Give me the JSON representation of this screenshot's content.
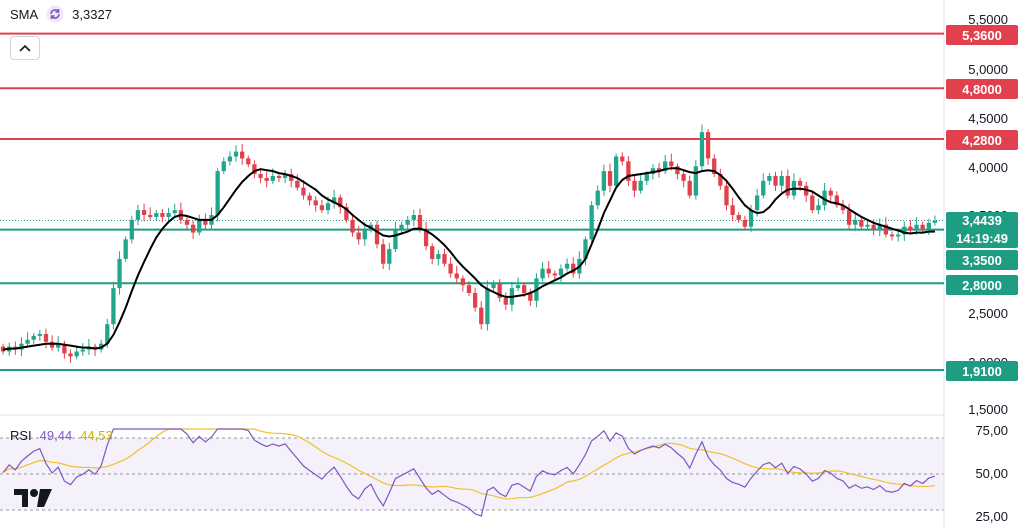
{
  "legend": {
    "indicator": "SMA",
    "value": "3,3327"
  },
  "rsi_legend": {
    "label": "RSI",
    "rsi_value": "49,44",
    "ma_value": "44,53"
  },
  "price_axis": [
    "5,5000",
    "5,0000",
    "4,5000",
    "4,0000",
    "3,5000",
    "2,5000",
    "2,0000",
    "1,5000"
  ],
  "rsi_axis": [
    "75,00",
    "50,00",
    "25,00"
  ],
  "levels": [
    {
      "label": "5,3600",
      "value": 5.36,
      "color": "#e0414c"
    },
    {
      "label": "4,8000",
      "value": 4.8,
      "color": "#e0414c"
    },
    {
      "label": "4,2800",
      "value": 4.28,
      "color": "#e0414c"
    },
    {
      "label": "3,3500",
      "value": 3.35,
      "color": "#1e9c84"
    },
    {
      "label": "2,8000",
      "value": 2.8,
      "color": "#1e9c84"
    },
    {
      "label": "1,9100",
      "value": 1.91,
      "color": "#1e9c84"
    }
  ],
  "current": {
    "price": "3,4439",
    "countdown": "14:19:49",
    "value": 3.4439
  },
  "colors": {
    "up": "#22a68b",
    "down": "#e0414c",
    "sma": "#000000",
    "rsi": "#7e57c2",
    "rsi_ma": "#f2c12e"
  },
  "icons": {
    "sma": "refresh-icon",
    "collapse": "chevron-up-icon",
    "logo": "tradingview-logo"
  },
  "chart_data": {
    "type": "candlestick",
    "price_ylim": [
      1.5,
      5.5
    ],
    "rsi_ylim": [
      25,
      75
    ],
    "rsi_band": [
      30,
      70
    ],
    "close": [
      2.1,
      2.15,
      2.12,
      2.18,
      2.22,
      2.26,
      2.28,
      2.2,
      2.14,
      2.18,
      2.08,
      2.05,
      2.1,
      2.12,
      2.15,
      2.12,
      2.18,
      2.38,
      2.75,
      3.05,
      3.25,
      3.45,
      3.55,
      3.5,
      3.48,
      3.52,
      3.48,
      3.52,
      3.55,
      3.45,
      3.4,
      3.32,
      3.45,
      3.4,
      3.5,
      3.95,
      4.05,
      4.1,
      4.15,
      4.08,
      4.02,
      3.92,
      3.88,
      3.85,
      3.9,
      3.88,
      3.92,
      3.85,
      3.78,
      3.7,
      3.65,
      3.6,
      3.55,
      3.62,
      3.68,
      3.58,
      3.45,
      3.32,
      3.25,
      3.35,
      3.4,
      3.2,
      3.0,
      3.15,
      3.35,
      3.4,
      3.45,
      3.5,
      3.35,
      3.18,
      3.05,
      3.1,
      3.0,
      2.9,
      2.85,
      2.78,
      2.7,
      2.55,
      2.38,
      2.75,
      2.8,
      2.65,
      2.58,
      2.75,
      2.78,
      2.7,
      2.62,
      2.85,
      2.95,
      2.9,
      2.88,
      2.95,
      3.0,
      2.9,
      3.05,
      3.25,
      3.6,
      3.75,
      3.95,
      3.8,
      4.1,
      4.05,
      3.85,
      3.75,
      3.85,
      3.92,
      3.98,
      3.95,
      4.05,
      4.0,
      3.92,
      3.85,
      3.7,
      4.0,
      4.35,
      4.08,
      3.92,
      3.8,
      3.6,
      3.5,
      3.45,
      3.38,
      3.55,
      3.7,
      3.85,
      3.9,
      3.8,
      3.9,
      3.7,
      3.85,
      3.8,
      3.7,
      3.55,
      3.6,
      3.75,
      3.7,
      3.6,
      3.55,
      3.4,
      3.45,
      3.38,
      3.4,
      3.35,
      3.4,
      3.3,
      3.28,
      3.3,
      3.38,
      3.34,
      3.4,
      3.36,
      3.42,
      3.44
    ],
    "open": [
      2.15,
      2.1,
      2.15,
      2.12,
      2.18,
      2.22,
      2.26,
      2.28,
      2.2,
      2.14,
      2.18,
      2.08,
      2.05,
      2.1,
      2.12,
      2.15,
      2.12,
      2.18,
      2.38,
      2.75,
      3.05,
      3.25,
      3.45,
      3.55,
      3.5,
      3.48,
      3.52,
      3.48,
      3.52,
      3.55,
      3.45,
      3.4,
      3.32,
      3.45,
      3.4,
      3.5,
      3.95,
      4.05,
      4.1,
      4.15,
      4.08,
      4.02,
      3.92,
      3.88,
      3.85,
      3.9,
      3.88,
      3.92,
      3.85,
      3.78,
      3.7,
      3.65,
      3.6,
      3.55,
      3.62,
      3.68,
      3.58,
      3.45,
      3.32,
      3.25,
      3.35,
      3.4,
      3.2,
      3.0,
      3.15,
      3.35,
      3.4,
      3.45,
      3.5,
      3.35,
      3.18,
      3.05,
      3.1,
      3.0,
      2.9,
      2.85,
      2.78,
      2.7,
      2.55,
      2.38,
      2.75,
      2.8,
      2.65,
      2.58,
      2.75,
      2.78,
      2.7,
      2.62,
      2.85,
      2.95,
      2.9,
      2.88,
      2.95,
      3.0,
      2.9,
      3.05,
      3.25,
      3.6,
      3.75,
      3.95,
      3.8,
      4.1,
      4.05,
      3.85,
      3.75,
      3.85,
      3.92,
      3.98,
      3.95,
      4.05,
      4.0,
      3.92,
      3.85,
      3.7,
      4.0,
      4.35,
      4.08,
      3.92,
      3.8,
      3.6,
      3.5,
      3.45,
      3.38,
      3.55,
      3.7,
      3.85,
      3.9,
      3.8,
      3.9,
      3.7,
      3.85,
      3.8,
      3.7,
      3.55,
      3.6,
      3.75,
      3.7,
      3.6,
      3.55,
      3.4,
      3.45,
      3.38,
      3.4,
      3.35,
      3.4,
      3.3,
      3.28,
      3.3,
      3.38,
      3.34,
      3.4,
      3.36,
      3.42
    ],
    "sma": [
      2.12,
      2.13,
      2.13,
      2.14,
      2.15,
      2.16,
      2.17,
      2.18,
      2.18,
      2.18,
      2.17,
      2.16,
      2.15,
      2.14,
      2.14,
      2.13,
      2.14,
      2.18,
      2.27,
      2.4,
      2.55,
      2.72,
      2.88,
      3.02,
      3.15,
      3.27,
      3.36,
      3.43,
      3.48,
      3.5,
      3.49,
      3.47,
      3.45,
      3.45,
      3.45,
      3.5,
      3.58,
      3.67,
      3.76,
      3.84,
      3.9,
      3.95,
      3.97,
      3.96,
      3.95,
      3.93,
      3.92,
      3.9,
      3.88,
      3.84,
      3.8,
      3.76,
      3.7,
      3.66,
      3.63,
      3.6,
      3.56,
      3.5,
      3.45,
      3.4,
      3.37,
      3.33,
      3.29,
      3.28,
      3.29,
      3.31,
      3.33,
      3.36,
      3.36,
      3.34,
      3.3,
      3.25,
      3.19,
      3.12,
      3.04,
      2.97,
      2.91,
      2.85,
      2.78,
      2.74,
      2.71,
      2.68,
      2.66,
      2.66,
      2.67,
      2.68,
      2.7,
      2.73,
      2.77,
      2.8,
      2.83,
      2.86,
      2.9,
      2.93,
      2.97,
      3.05,
      3.2,
      3.35,
      3.52,
      3.65,
      3.78,
      3.86,
      3.9,
      3.91,
      3.92,
      3.93,
      3.94,
      3.95,
      3.97,
      3.98,
      3.98,
      3.96,
      3.94,
      3.93,
      3.95,
      3.96,
      3.95,
      3.91,
      3.85,
      3.77,
      3.68,
      3.6,
      3.55,
      3.52,
      3.53,
      3.58,
      3.66,
      3.72,
      3.76,
      3.77,
      3.77,
      3.76,
      3.74,
      3.7,
      3.66,
      3.63,
      3.62,
      3.6,
      3.56,
      3.52,
      3.48,
      3.45,
      3.42,
      3.4,
      3.38,
      3.36,
      3.34,
      3.32,
      3.31,
      3.32,
      3.32,
      3.33,
      3.33
    ]
  }
}
